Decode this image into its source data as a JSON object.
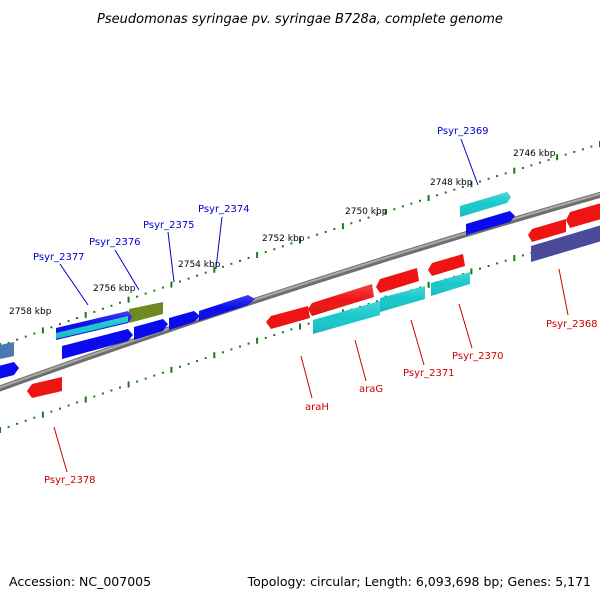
{
  "title": "Pseudomonas syringae pv. syringae B728a, complete genome",
  "footer": {
    "accession": "Accession: NC_007005",
    "summary": "Topology: circular; Length: 6,093,698 bp; Genes: 5,171"
  },
  "colors": {
    "backbone": "#808080",
    "tick": "#1a7a1a",
    "blue_gene": "#0a0aee",
    "cyan_gene": "#18c8cc",
    "red_gene": "#ee1414",
    "olive_gene": "#6f8a22",
    "navy_gene": "#4a4a9a",
    "steel_gene": "#4a7ab0",
    "label_blue": "#0000cc",
    "label_red": "#cc0000"
  },
  "scale_labels": [
    "2746 kbp",
    "2748 kbp",
    "2750 kbp",
    "2752 kbp",
    "2754 kbp",
    "2756 kbp",
    "2758 kbp"
  ],
  "gene_labels_top": [
    "Psyr_2369",
    "Psyr_2374",
    "Psyr_2375",
    "Psyr_2376",
    "Psyr_2377"
  ],
  "gene_labels_bottom": [
    "Psyr_2368",
    "Psyr_2370",
    "Psyr_2371",
    "araG",
    "araH",
    "Psyr_2378"
  ]
}
